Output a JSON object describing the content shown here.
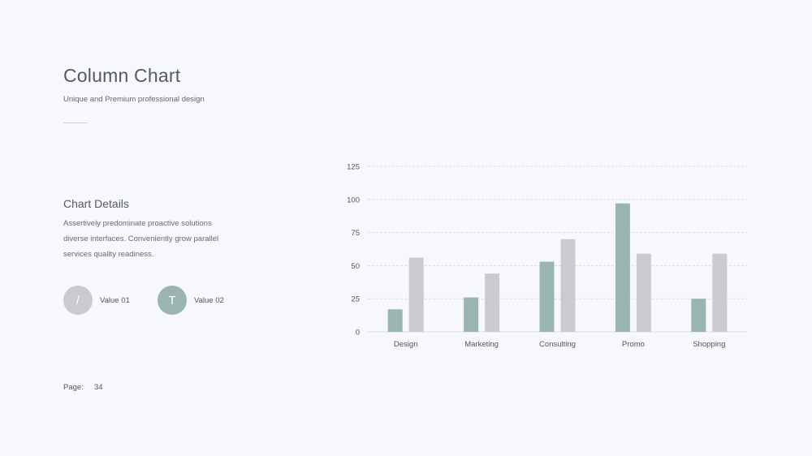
{
  "slide": {
    "title": "Column Chart",
    "subtitle": "Unique and Premium professional design",
    "details_title": "Chart Details",
    "details_body": "Assertively predominate proactive solutions diverse interfaces. Conveniently grow parallel services quality readiness.",
    "legend": [
      {
        "glyph": "/",
        "label": "Value 01",
        "color": "#c9cbd0"
      },
      {
        "glyph": "T",
        "label": "Value 02",
        "color": "#9ab5b0"
      }
    ],
    "page_label": "Page:",
    "page_number": "34"
  },
  "chart_data": {
    "type": "bar",
    "categories": [
      "Design",
      "Marketing",
      "Consulting",
      "Promo",
      "Shopping"
    ],
    "series": [
      {
        "values": [
          17,
          26,
          53,
          97,
          25
        ],
        "color": "#9ab5b0"
      },
      {
        "values": [
          56,
          44,
          70,
          59,
          59
        ],
        "color": "#c9cbd0"
      }
    ],
    "yticks": [
      0,
      25,
      50,
      75,
      100,
      125
    ],
    "ylim": [
      0,
      125
    ],
    "grid": true,
    "xlabel": "",
    "ylabel": ""
  }
}
